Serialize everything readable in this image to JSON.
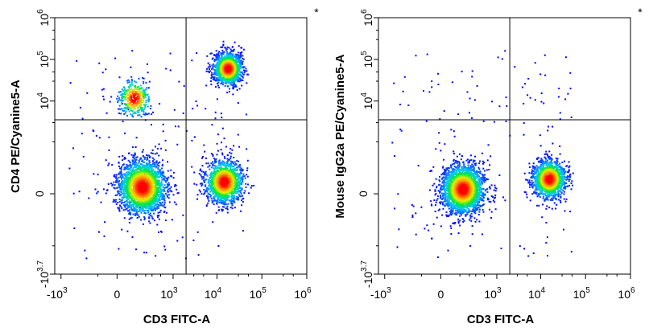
{
  "chart_data": [
    {
      "type": "scatter",
      "subtype": "flow-cytometry-density",
      "title": "",
      "xlabel": "CD3 FITC-A",
      "ylabel": "CD4 PE/Cyanine5-A",
      "corner_mark": "*",
      "x_ticks": [
        {
          "label": "-10",
          "exp": "3",
          "value": -1000
        },
        {
          "label": "0",
          "exp": "",
          "value": 0
        },
        {
          "label": "10",
          "exp": "3",
          "value": 1000
        },
        {
          "label": "10",
          "exp": "4",
          "value": 10000
        },
        {
          "label": "10",
          "exp": "5",
          "value": 100000
        },
        {
          "label": "10",
          "exp": "6",
          "value": 1000000
        }
      ],
      "y_ticks": [
        {
          "label": "-10",
          "exp": "3.7",
          "value": -5000
        },
        {
          "label": "0",
          "exp": "",
          "value": 0
        },
        {
          "label": "10",
          "exp": "4",
          "value": 10000
        },
        {
          "label": "10",
          "exp": "5",
          "value": 100000
        },
        {
          "label": "10",
          "exp": "6",
          "value": 1000000
        }
      ],
      "gate_x": 2000,
      "gate_y": 3500,
      "populations": [
        {
          "name": "",
          "x": 150,
          "y": 30,
          "spread": 1.0,
          "density": "very high"
        },
        {
          "name": "",
          "x": 14000,
          "y": 60,
          "spread": 0.8,
          "density": "high"
        },
        {
          "name": "",
          "x": 17000,
          "y": 62000,
          "spread": 0.6,
          "density": "high"
        },
        {
          "name": "",
          "x": 80,
          "y": 12000,
          "spread": 0.7,
          "density": "low"
        }
      ]
    },
    {
      "type": "scatter",
      "subtype": "flow-cytometry-density",
      "title": "",
      "xlabel": "CD3 FITC-A",
      "ylabel": "Mouse IgG2a PE/Cyanine5-A",
      "corner_mark": "*",
      "x_ticks": [
        {
          "label": "-10",
          "exp": "3",
          "value": -1000
        },
        {
          "label": "0",
          "exp": "",
          "value": 0
        },
        {
          "label": "10",
          "exp": "3",
          "value": 1000
        },
        {
          "label": "10",
          "exp": "4",
          "value": 10000
        },
        {
          "label": "10",
          "exp": "5",
          "value": 100000
        },
        {
          "label": "10",
          "exp": "6",
          "value": 1000000
        }
      ],
      "y_ticks": [
        {
          "label": "-10",
          "exp": "3.7",
          "value": -5000
        },
        {
          "label": "0",
          "exp": "",
          "value": 0
        },
        {
          "label": "10",
          "exp": "4",
          "value": 10000
        },
        {
          "label": "10",
          "exp": "5",
          "value": 100000
        },
        {
          "label": "10",
          "exp": "6",
          "value": 1000000
        }
      ],
      "gate_x": 2000,
      "gate_y": 3500,
      "populations": [
        {
          "name": "",
          "x": 120,
          "y": 20,
          "spread": 0.9,
          "density": "very high"
        },
        {
          "name": "",
          "x": 15000,
          "y": 80,
          "spread": 0.7,
          "density": "high"
        }
      ]
    }
  ],
  "colors": {
    "density_low": "#0000ff",
    "density_mid": "#00ff00",
    "density_high": "#ffff00",
    "density_peak": "#ff0000",
    "gate_line": "#000000"
  }
}
